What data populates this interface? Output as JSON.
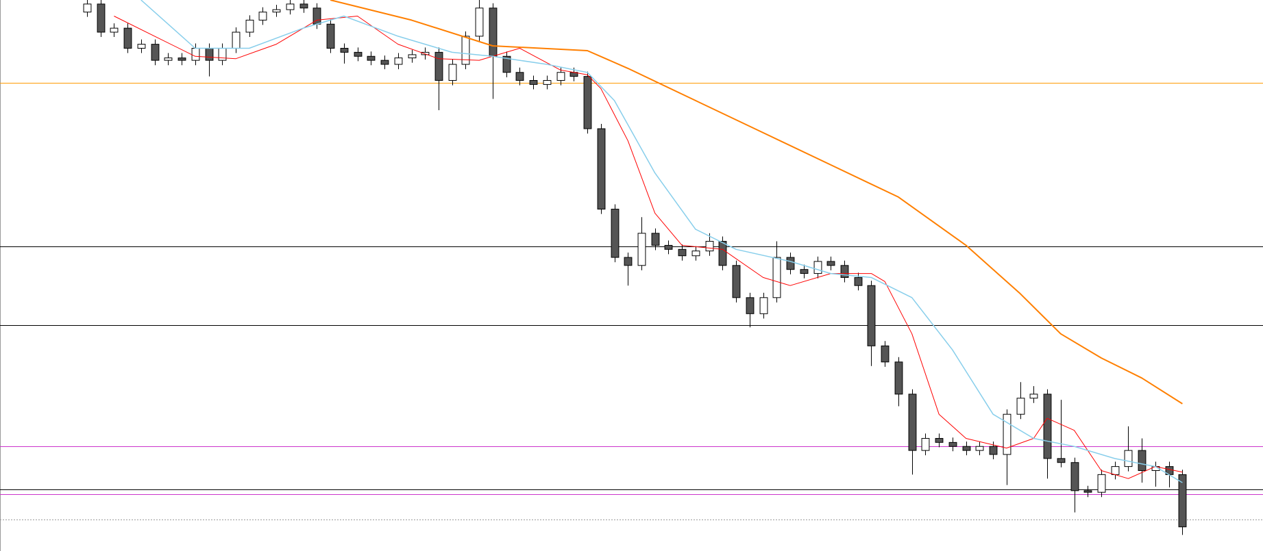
{
  "chart_data": {
    "type": "candlestick",
    "xlim": [
      -6.43,
      86.96
    ],
    "ylim": [
      0,
      685
    ],
    "up_color": "#ffffff",
    "down_color": "#555555",
    "wick_color": "#000000",
    "open": [
      670,
      680,
      645,
      650,
      625,
      630,
      610,
      613,
      610,
      625,
      610,
      625,
      645,
      660,
      670,
      673,
      680,
      675,
      655,
      625,
      620,
      615,
      610,
      605,
      613,
      617,
      620,
      585,
      605,
      640,
      675,
      615,
      595,
      585,
      580,
      585,
      595,
      590,
      525,
      425,
      365,
      355,
      395,
      380,
      375,
      367,
      373,
      385,
      355,
      315,
      295,
      315,
      365,
      350,
      345,
      360,
      355,
      340,
      330,
      255,
      235,
      195,
      125,
      140,
      135,
      130,
      125,
      130,
      120,
      170,
      190,
      195,
      115,
      110,
      75,
      73,
      95,
      105,
      125,
      100,
      105,
      95
    ],
    "high": [
      686,
      686,
      656,
      656,
      636,
      636,
      619,
      619,
      631,
      631,
      631,
      651,
      666,
      676,
      679,
      686,
      686,
      681,
      661,
      631,
      626,
      621,
      616,
      619,
      623,
      626,
      626,
      611,
      646,
      685,
      681,
      621,
      601,
      591,
      591,
      601,
      601,
      596,
      531,
      431,
      371,
      415,
      401,
      386,
      381,
      379,
      395,
      391,
      361,
      321,
      321,
      385,
      371,
      356,
      366,
      366,
      361,
      346,
      336,
      261,
      241,
      201,
      146,
      146,
      141,
      136,
      136,
      136,
      176,
      210,
      205,
      201,
      188,
      116,
      81,
      101,
      111,
      155,
      140,
      111,
      111,
      101
    ],
    "low": [
      664,
      639,
      639,
      619,
      619,
      604,
      604,
      604,
      604,
      590,
      604,
      619,
      639,
      654,
      664,
      667,
      669,
      649,
      619,
      606,
      609,
      604,
      599,
      599,
      607,
      611,
      548,
      579,
      599,
      634,
      562,
      589,
      579,
      574,
      574,
      579,
      584,
      519,
      419,
      359,
      330,
      349,
      374,
      369,
      361,
      361,
      367,
      349,
      309,
      278,
      289,
      309,
      344,
      339,
      339,
      349,
      334,
      324,
      230,
      229,
      180,
      95,
      119,
      129,
      124,
      119,
      119,
      114,
      82,
      164,
      184,
      90,
      104,
      48,
      67,
      67,
      89,
      99,
      85,
      80,
      79,
      20
    ],
    "close": [
      680,
      645,
      650,
      625,
      630,
      610,
      613,
      610,
      625,
      610,
      625,
      645,
      660,
      670,
      673,
      680,
      675,
      655,
      625,
      620,
      615,
      610,
      605,
      613,
      617,
      620,
      585,
      605,
      640,
      675,
      615,
      595,
      585,
      580,
      585,
      595,
      590,
      525,
      425,
      365,
      355,
      395,
      380,
      375,
      367,
      373,
      385,
      355,
      315,
      295,
      315,
      365,
      350,
      345,
      360,
      355,
      340,
      330,
      255,
      235,
      195,
      125,
      140,
      135,
      130,
      125,
      130,
      120,
      170,
      190,
      195,
      115,
      110,
      75,
      73,
      95,
      105,
      125,
      100,
      105,
      95,
      30
    ],
    "lines": [
      {
        "color": "#ff0000",
        "width": 1,
        "x": [
          2,
          5,
          8,
          11,
          14,
          17,
          20,
          23,
          26,
          29,
          32,
          35,
          37,
          38,
          40,
          42,
          44,
          47,
          50,
          52,
          55,
          58,
          59,
          61,
          63,
          65,
          68,
          70,
          71,
          73,
          75,
          77,
          79,
          81
        ],
        "values": [
          665,
          640,
          615,
          612,
          630,
          660,
          665,
          630,
          612,
          610,
          625,
          598,
          592,
          575,
          510,
          420,
          380,
          375,
          340,
          330,
          345,
          345,
          335,
          270,
          170,
          140,
          128,
          140,
          165,
          150,
          100,
          90,
          105,
          98
        ]
      },
      {
        "color": "#87ceeb",
        "width": 1.5,
        "x": [
          4,
          8,
          12,
          16,
          19,
          23,
          27,
          30,
          34,
          37,
          39,
          42,
          45,
          48,
          52,
          55,
          58,
          61,
          64,
          67,
          70,
          73,
          76,
          79,
          81
        ],
        "values": [
          685,
          625,
          625,
          650,
          665,
          640,
          620,
          615,
          605,
          595,
          560,
          470,
          400,
          375,
          360,
          345,
          340,
          315,
          250,
          170,
          140,
          130,
          115,
          105,
          85
        ]
      },
      {
        "color": "#ff7f00",
        "width": 2,
        "x": [
          18,
          24,
          30,
          37,
          40,
          45,
          50,
          55,
          60,
          65,
          69,
          72,
          75,
          78,
          81
        ],
        "values": [
          685,
          660,
          628,
          622,
          600,
          560,
          520,
          480,
          440,
          380,
          320,
          270,
          240,
          215,
          183
        ]
      }
    ],
    "hlines": [
      {
        "value": 582,
        "color": "#ff9900",
        "style": "solid"
      },
      {
        "value": 379,
        "color": "#000000",
        "style": "solid"
      },
      {
        "value": 281,
        "color": "#000000",
        "style": "solid"
      },
      {
        "value": 130,
        "color": "#cc33cc",
        "style": "solid"
      },
      {
        "value": 77,
        "color": "#000000",
        "style": "solid"
      },
      {
        "value": 71,
        "color": "#cc33cc",
        "style": "solid"
      },
      {
        "value": 39,
        "color": "#999999",
        "style": "dotted"
      }
    ]
  }
}
